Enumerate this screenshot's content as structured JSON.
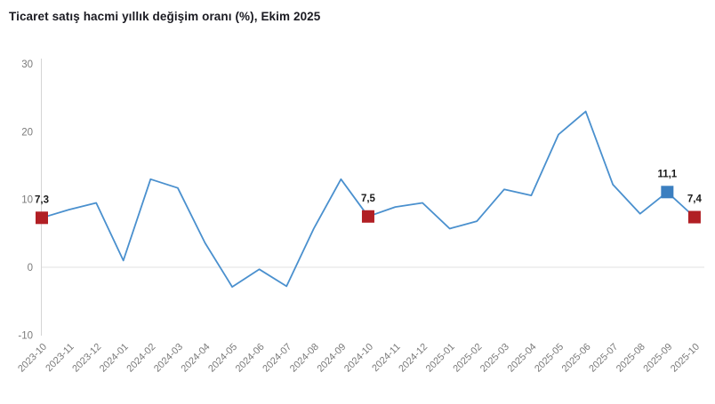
{
  "title": "Ticaret satış hacmi yıllık değişim oranı (%), Ekim 2025",
  "chart_data": {
    "type": "line",
    "title": "Ticaret satış hacmi yıllık değişim oranı (%), Ekim 2025",
    "xlabel": "",
    "ylabel": "",
    "ylim": [
      -10,
      30
    ],
    "yticks": [
      30,
      20,
      10,
      0,
      -10
    ],
    "grid": "zero-line-only",
    "legend": "none",
    "categories": [
      "2023-10",
      "2023-11",
      "2023-12",
      "2024-01",
      "2024-02",
      "2024-03",
      "2024-04",
      "2024-05",
      "2024-06",
      "2024-07",
      "2024-08",
      "2024-09",
      "2024-10",
      "2024-11",
      "2024-12",
      "2025-01",
      "2025-02",
      "2025-03",
      "2025-04",
      "2025-05",
      "2025-06",
      "2025-07",
      "2025-08",
      "2025-09",
      "2025-10"
    ],
    "values": [
      7.3,
      8.5,
      9.5,
      1.0,
      13.0,
      11.7,
      3.6,
      -2.9,
      -0.3,
      -2.8,
      5.7,
      13.0,
      7.5,
      8.9,
      9.5,
      5.7,
      6.8,
      11.5,
      10.6,
      19.6,
      23.0,
      12.2,
      7.9,
      11.1,
      7.4
    ],
    "highlighted_points": [
      {
        "category": "2023-10",
        "value": 7.3,
        "label": "7,3",
        "marker_color": "#b11f24",
        "marker_shape": "square"
      },
      {
        "category": "2024-10",
        "value": 7.5,
        "label": "7,5",
        "marker_color": "#b11f24",
        "marker_shape": "square"
      },
      {
        "category": "2025-09",
        "value": 11.1,
        "label": "11,1",
        "marker_color": "#3b7fc0",
        "marker_shape": "square"
      },
      {
        "category": "2025-10",
        "value": 7.4,
        "label": "7,4",
        "marker_color": "#b11f24",
        "marker_shape": "square"
      }
    ],
    "colors": {
      "line": "#4a90ce",
      "red_marker": "#b11f24",
      "blue_marker": "#3b7fc0",
      "value_label": "#1a1a1a",
      "axis_text": "#7a7a7a",
      "axis_line": "#d4d4d4",
      "zero_gridline": "#e8e8e8",
      "background": "#ffffff"
    }
  }
}
